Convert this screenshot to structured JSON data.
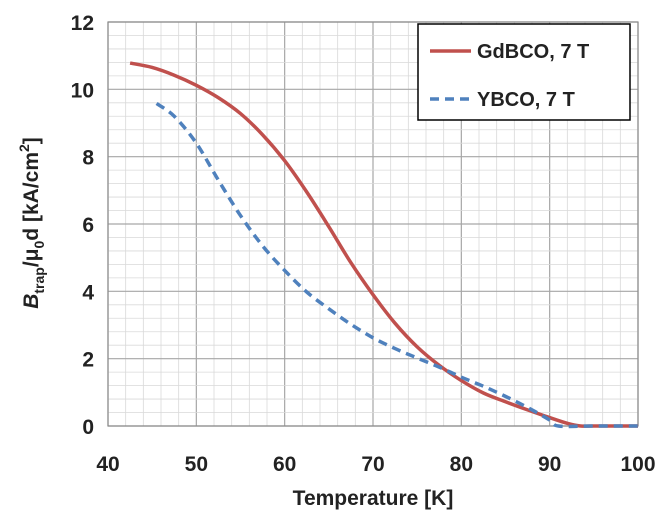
{
  "chart_data": {
    "type": "line",
    "xlabel": "Temperature [K]",
    "ylabel": {
      "base": "B",
      "sub1": "trap",
      "mid": "/μ",
      "sub2": "0",
      "tail": "d [kA/cm",
      "sup": "2",
      "close": "]"
    },
    "xlim": [
      40,
      100
    ],
    "ylim": [
      0,
      12
    ],
    "x_ticks": [
      "40",
      "50",
      "60",
      "70",
      "80",
      "90",
      "100"
    ],
    "y_ticks": [
      "0",
      "2",
      "4",
      "6",
      "8",
      "10",
      "12"
    ],
    "grid": true,
    "legend_position": "top-right",
    "series": [
      {
        "name": "GdBCO, 7 T",
        "color": "#c0504d",
        "style": "solid",
        "x": [
          42.5,
          45,
          47.5,
          50,
          52.5,
          55,
          57.5,
          60,
          62.5,
          65,
          67.5,
          70,
          72.5,
          75,
          77.5,
          80,
          82.5,
          85,
          87.5,
          90,
          92,
          93.5,
          95,
          100
        ],
        "y": [
          10.78,
          10.65,
          10.42,
          10.12,
          9.75,
          9.28,
          8.65,
          7.88,
          6.95,
          5.92,
          4.85,
          3.9,
          3.05,
          2.35,
          1.8,
          1.35,
          0.98,
          0.72,
          0.48,
          0.25,
          0.08,
          0.0,
          0.0,
          0.0
        ]
      },
      {
        "name": "YBCO, 7 T",
        "color": "#4f81bd",
        "style": "dashed",
        "x": [
          45.5,
          47.5,
          50,
          52.5,
          55,
          57.5,
          60,
          62.5,
          65,
          67.5,
          70,
          72.5,
          75,
          77.5,
          80,
          82.5,
          85,
          87.5,
          90,
          91,
          95,
          100
        ],
        "y": [
          9.58,
          9.2,
          8.4,
          7.3,
          6.25,
          5.35,
          4.62,
          3.98,
          3.48,
          3.02,
          2.62,
          2.3,
          2.02,
          1.75,
          1.45,
          1.18,
          0.88,
          0.55,
          0.18,
          0.0,
          0.0,
          0.0
        ]
      }
    ]
  }
}
